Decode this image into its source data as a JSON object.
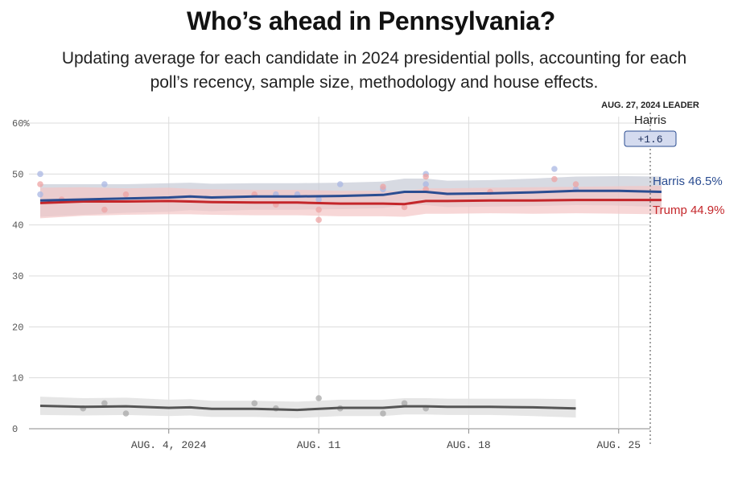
{
  "header": {
    "title": "Who’s ahead in Pennsylvania?",
    "subtitle": "Updating average for each candidate in 2024 presidential polls, accounting for each poll’s recency, sample size, methodology and house effects."
  },
  "leader_box": {
    "label": "AUG. 27, 2024 LEADER",
    "name": "Harris",
    "margin": "+1.6"
  },
  "colors": {
    "harris": "#2b4d91",
    "trump": "#c4262a",
    "other": "#555555",
    "harris_band": "#c9cdd8",
    "trump_band": "#f4c6c6",
    "other_band": "#e3e3e3",
    "grid": "#dcdcdc"
  },
  "chart_data": {
    "type": "line",
    "y_ticks": [
      "0",
      "10",
      "20",
      "30",
      "40",
      "50",
      "60%"
    ],
    "ylim": [
      0,
      60
    ],
    "xlim": [
      "2024-07-29",
      "2024-08-27"
    ],
    "x_ticks": [
      {
        "date": "2024-08-04",
        "label": "AUG. 4, 2024"
      },
      {
        "date": "2024-08-11",
        "label": "AUG. 11"
      },
      {
        "date": "2024-08-18",
        "label": "AUG. 18"
      },
      {
        "date": "2024-08-25",
        "label": "AUG. 25"
      }
    ],
    "series": [
      {
        "name": "Harris",
        "end_label": "Harris 46.5%",
        "color": "#2b4d91",
        "dates": [
          "2024-07-29",
          "2024-07-31",
          "2024-08-02",
          "2024-08-04",
          "2024-08-05",
          "2024-08-06",
          "2024-08-08",
          "2024-08-10",
          "2024-08-12",
          "2024-08-14",
          "2024-08-15",
          "2024-08-16",
          "2024-08-17",
          "2024-08-19",
          "2024-08-21",
          "2024-08-23",
          "2024-08-25",
          "2024-08-27"
        ],
        "values": [
          44.8,
          45.0,
          45.2,
          45.4,
          45.6,
          45.4,
          45.6,
          45.6,
          45.7,
          45.9,
          46.5,
          46.5,
          46.1,
          46.2,
          46.4,
          46.7,
          46.7,
          46.5
        ],
        "band": [
          3.2,
          3.0,
          2.8,
          2.8,
          2.7,
          2.7,
          2.6,
          2.6,
          2.6,
          2.6,
          2.6,
          2.6,
          2.6,
          2.6,
          2.7,
          2.8,
          2.9,
          3.0
        ],
        "polls": [
          {
            "date": "2024-07-29",
            "value": 50.0
          },
          {
            "date": "2024-07-29",
            "value": 46.0
          },
          {
            "date": "2024-08-01",
            "value": 48.0
          },
          {
            "date": "2024-08-09",
            "value": 46.0
          },
          {
            "date": "2024-08-10",
            "value": 46.0
          },
          {
            "date": "2024-08-11",
            "value": 45.0
          },
          {
            "date": "2024-08-12",
            "value": 48.0
          },
          {
            "date": "2024-08-14",
            "value": 47.0
          },
          {
            "date": "2024-08-16",
            "value": 48.0
          },
          {
            "date": "2024-08-16",
            "value": 50.0
          },
          {
            "date": "2024-08-22",
            "value": 51.0
          },
          {
            "date": "2024-08-23",
            "value": 47.0
          }
        ]
      },
      {
        "name": "Trump",
        "end_label": "Trump 44.9%",
        "color": "#c4262a",
        "dates": [
          "2024-07-29",
          "2024-07-31",
          "2024-08-02",
          "2024-08-04",
          "2024-08-05",
          "2024-08-06",
          "2024-08-08",
          "2024-08-10",
          "2024-08-12",
          "2024-08-14",
          "2024-08-15",
          "2024-08-16",
          "2024-08-17",
          "2024-08-19",
          "2024-08-21",
          "2024-08-23",
          "2024-08-25",
          "2024-08-27"
        ],
        "values": [
          44.3,
          44.6,
          44.6,
          44.7,
          44.6,
          44.5,
          44.4,
          44.4,
          44.2,
          44.2,
          44.1,
          44.7,
          44.7,
          44.8,
          44.8,
          44.9,
          44.9,
          44.9
        ],
        "band": [
          3.0,
          2.8,
          2.6,
          2.6,
          2.5,
          2.5,
          2.5,
          2.5,
          2.5,
          2.5,
          2.5,
          2.5,
          2.5,
          2.5,
          2.6,
          2.6,
          2.7,
          2.8
        ],
        "polls": [
          {
            "date": "2024-07-29",
            "value": 48.0
          },
          {
            "date": "2024-07-30",
            "value": 45.0
          },
          {
            "date": "2024-08-01",
            "value": 43.0
          },
          {
            "date": "2024-08-02",
            "value": 46.0
          },
          {
            "date": "2024-08-08",
            "value": 46.0
          },
          {
            "date": "2024-08-09",
            "value": 44.0
          },
          {
            "date": "2024-08-11",
            "value": 43.0
          },
          {
            "date": "2024-08-11",
            "value": 41.0
          },
          {
            "date": "2024-08-14",
            "value": 47.5
          },
          {
            "date": "2024-08-15",
            "value": 43.5
          },
          {
            "date": "2024-08-16",
            "value": 47.0
          },
          {
            "date": "2024-08-16",
            "value": 49.5
          },
          {
            "date": "2024-08-19",
            "value": 46.5
          },
          {
            "date": "2024-08-22",
            "value": 49.0
          },
          {
            "date": "2024-08-23",
            "value": 48.0
          }
        ]
      },
      {
        "name": "Other",
        "color": "#555555",
        "dates": [
          "2024-07-29",
          "2024-07-31",
          "2024-08-02",
          "2024-08-04",
          "2024-08-05",
          "2024-08-06",
          "2024-08-08",
          "2024-08-10",
          "2024-08-12",
          "2024-08-14",
          "2024-08-15",
          "2024-08-16",
          "2024-08-17",
          "2024-08-19",
          "2024-08-21",
          "2024-08-23"
        ],
        "values": [
          4.5,
          4.3,
          4.4,
          4.1,
          4.2,
          3.9,
          3.9,
          3.7,
          4.1,
          4.1,
          4.4,
          4.4,
          4.3,
          4.3,
          4.2,
          4.0
        ],
        "band": [
          1.8,
          1.7,
          1.7,
          1.6,
          1.6,
          1.6,
          1.6,
          1.6,
          1.6,
          1.6,
          1.6,
          1.6,
          1.6,
          1.6,
          1.7,
          1.8
        ],
        "polls": [
          {
            "date": "2024-07-31",
            "value": 4.0
          },
          {
            "date": "2024-08-01",
            "value": 5.0
          },
          {
            "date": "2024-08-02",
            "value": 3.0
          },
          {
            "date": "2024-08-08",
            "value": 5.0
          },
          {
            "date": "2024-08-09",
            "value": 4.0
          },
          {
            "date": "2024-08-11",
            "value": 6.0
          },
          {
            "date": "2024-08-12",
            "value": 4.0
          },
          {
            "date": "2024-08-14",
            "value": 3.0
          },
          {
            "date": "2024-08-15",
            "value": 5.0
          },
          {
            "date": "2024-08-16",
            "value": 4.0
          }
        ]
      }
    ]
  }
}
